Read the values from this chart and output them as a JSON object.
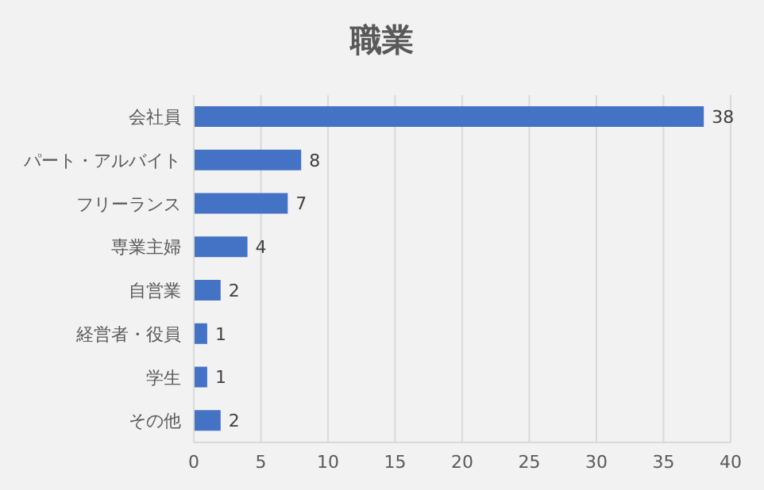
{
  "chart_data": {
    "type": "bar",
    "orientation": "horizontal",
    "title": "職業",
    "categories": [
      "会社員",
      "パート・アルバイト",
      "フリーランス",
      "専業主婦",
      "自営業",
      "経営者・役員",
      "学生",
      "その他"
    ],
    "values": [
      38,
      8,
      7,
      4,
      2,
      1,
      1,
      2
    ],
    "color": "#4472c4",
    "xlim": [
      0,
      40
    ],
    "xticks": [
      0,
      5,
      10,
      15,
      20,
      25,
      30,
      35,
      40
    ],
    "grid": "x",
    "data_labels": true
  }
}
